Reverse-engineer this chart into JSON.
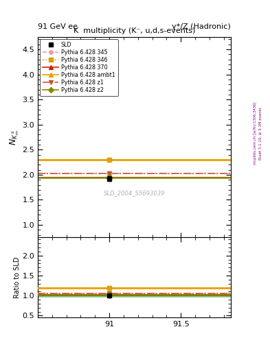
{
  "title_main": "K  multiplicity (K⁻, u,d,s-events)",
  "top_left_label": "91 GeV ee",
  "top_right_label": "γ*/Z (Hadronic)",
  "ylabel_main": "$N_{K^{\\pm}_m}$",
  "ylabel_ratio": "Ratio to SLD",
  "watermark": "SLD_2004_S5693039",
  "right_label_top": "Rivet 3.1.10, ≥ 3.1M events",
  "right_label_bot": "mcplots.cern.ch [arXiv:1306.3436]",
  "xlim": [
    90.5,
    91.85
  ],
  "xticks": [
    91.0,
    91.5
  ],
  "ylim_main": [
    0.75,
    4.75
  ],
  "yticks_main": [
    1.0,
    1.5,
    2.0,
    2.5,
    3.0,
    3.5,
    4.0,
    4.5
  ],
  "ylim_ratio": [
    0.45,
    2.45
  ],
  "yticks_ratio": [
    0.5,
    1.0,
    1.5,
    2.0
  ],
  "data_x": 91.0,
  "data_y": 1.92,
  "data_yerr": 0.05,
  "lines": [
    {
      "label": "Pythia 6.428 345",
      "y": 2.02,
      "color": "#e8a0a0",
      "linestyle": "dashed",
      "marker": "o",
      "lw": 1.2
    },
    {
      "label": "Pythia 6.428 346",
      "y": 2.3,
      "color": "#d4a000",
      "linestyle": "dotted",
      "marker": "s",
      "lw": 1.2
    },
    {
      "label": "Pythia 6.428 370",
      "y": 1.95,
      "color": "#cc2200",
      "linestyle": "solid",
      "marker": "^",
      "lw": 1.5
    },
    {
      "label": "Pythia 6.428 ambt1",
      "y": 2.3,
      "color": "#e8a000",
      "linestyle": "solid",
      "marker": "^",
      "lw": 2.0
    },
    {
      "label": "Pythia 6.428 z1",
      "y": 2.02,
      "color": "#cc5533",
      "linestyle": "dashdot",
      "marker": "v",
      "lw": 1.2
    },
    {
      "label": "Pythia 6.428 z2",
      "y": 1.95,
      "color": "#888800",
      "linestyle": "solid",
      "marker": "D",
      "lw": 1.8
    }
  ],
  "sld_band_color": "#99cc99",
  "sld_line_color": "#006600"
}
